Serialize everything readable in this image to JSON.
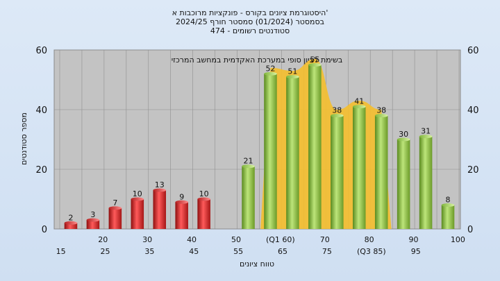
{
  "chart_data": {
    "type": "bar",
    "title_lines": [
      "היסטוגרמת ציונים בקורס - פונקציות מרוכבות א'",
      "בסמסטר  (01/2024)  סמסטר חורף  2024/25",
      "474 - סטודנטים רשומים"
    ],
    "annotation": "בשימת לציון סופי במערכת האקדמית במחשב המרכזי",
    "xlabel": "טווח ציונים",
    "ylabel": "מספר סטודנטים",
    "ylim": [
      0,
      60
    ],
    "yticks": [
      0,
      20,
      40,
      60
    ],
    "grid": true,
    "categories": [
      "15",
      "20",
      "25",
      "30",
      "35",
      "40",
      "45",
      "50",
      "55",
      "60",
      "65",
      "70",
      "75",
      "80",
      "85",
      "90",
      "95",
      "100"
    ],
    "category_labels": [
      "15",
      "20",
      "25",
      "30",
      "35",
      "40",
      "45",
      "50",
      "55",
      "(Q1 60)",
      "65",
      "70",
      "75",
      "80",
      "(Q3 85)",
      "90",
      "95",
      "100"
    ],
    "values": [
      2,
      3,
      7,
      10,
      13,
      9,
      10,
      0,
      21,
      52,
      51,
      55,
      38,
      41,
      38,
      30,
      31,
      8
    ],
    "fail_threshold": 50,
    "colors": {
      "fail": "#dd2a2a",
      "pass": "#8cbf3a",
      "band": "#f5bf2e",
      "plot_bg": "#c3c3c3"
    }
  }
}
